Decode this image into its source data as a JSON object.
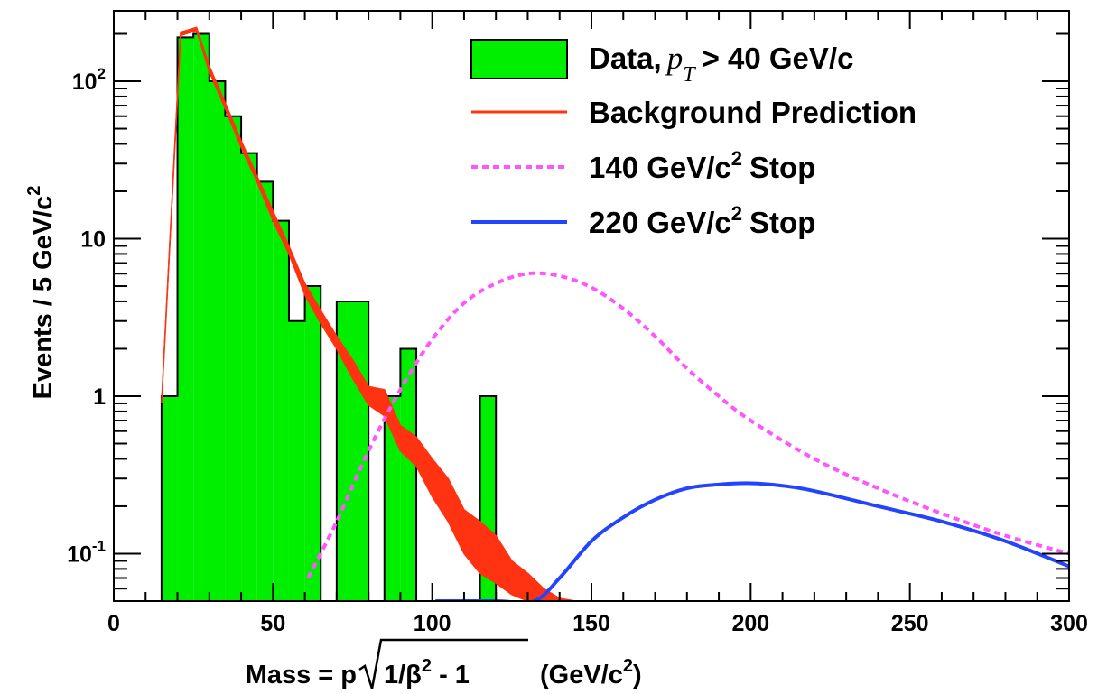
{
  "chart_data": {
    "type": "bar",
    "xlabel_prefix": "Mass = p",
    "xlabel_root": "1/β",
    "xlabel_root_sup": "2",
    "xlabel_root_tail": " - 1",
    "xlabel_units": "(GeV/c",
    "xlabel_units_sup": "2",
    "xlabel_units_close": ")",
    "ylabel": "Events / 5 GeV/c",
    "ylabel_sup": "2",
    "xlim": [
      0,
      300
    ],
    "ylim": [
      0.05,
      280
    ],
    "yscale": "log",
    "x_ticks": [
      "0",
      "50",
      "100",
      "150",
      "200",
      "250",
      "300"
    ],
    "y_ticks": [
      {
        "value": 0.1,
        "base": "10",
        "exp": "-1"
      },
      {
        "value": 1,
        "base": "1",
        "exp": ""
      },
      {
        "value": 10,
        "base": "10",
        "exp": ""
      },
      {
        "value": 100,
        "base": "10",
        "exp": "2"
      }
    ],
    "legend_placement": "top-right",
    "histogram": {
      "name": "Data, p_T > 40 GeV/c",
      "legend_prefix": "Data,",
      "legend_symbol": "p",
      "legend_symbol_sub": "T",
      "legend_suffix": "> 40 GeV/c",
      "color": "#00ee00",
      "bin_edges": [
        15,
        20,
        25,
        30,
        35,
        40,
        45,
        50,
        55,
        60,
        65,
        70,
        75,
        80,
        85,
        90,
        95,
        100,
        105,
        110,
        115,
        120
      ],
      "values": [
        1,
        190,
        200,
        100,
        60,
        35,
        23,
        13,
        3,
        5,
        0,
        4,
        4,
        0,
        1,
        2,
        0,
        0,
        0,
        0,
        1
      ]
    },
    "series": [
      {
        "name": "Background Prediction",
        "color": "#ff3311",
        "x": [
          15,
          21,
          26,
          30,
          35,
          40,
          45,
          50,
          55,
          60,
          65,
          70,
          75,
          80,
          85,
          90,
          95,
          100,
          105,
          110,
          115,
          120,
          125,
          130,
          135,
          140,
          145
        ],
        "y": [
          0.9,
          200,
          215,
          120,
          70,
          40,
          24,
          14,
          8.5,
          4.8,
          3.2,
          2.2,
          1.5,
          1.0,
          0.9,
          0.55,
          0.45,
          0.3,
          0.22,
          0.14,
          0.11,
          0.09,
          0.07,
          0.06,
          0.05,
          0.048,
          0.047
        ],
        "band_lower": [
          0.9,
          195,
          210,
          115,
          67,
          38,
          23,
          13,
          8.0,
          4.4,
          2.9,
          2.0,
          1.3,
          0.88,
          0.75,
          0.45,
          0.36,
          0.23,
          0.16,
          0.1,
          0.075,
          0.065,
          0.055,
          0.05,
          0.048,
          0.047,
          0.046
        ],
        "band_upper": [
          0.9,
          205,
          220,
          125,
          73,
          42,
          25,
          15,
          9.0,
          5.2,
          3.5,
          2.4,
          1.7,
          1.15,
          1.1,
          0.65,
          0.55,
          0.4,
          0.3,
          0.19,
          0.16,
          0.13,
          0.09,
          0.075,
          0.06,
          0.052,
          0.05
        ]
      },
      {
        "name": "140 GeV/c",
        "name_sup": "2",
        "name_suffix": "Stop",
        "color": "#ff55ff",
        "dashed": true,
        "x": [
          61,
          70,
          80,
          90,
          100,
          110,
          120,
          130,
          140,
          150,
          160,
          170,
          180,
          190,
          200,
          220,
          240,
          260,
          280,
          300
        ],
        "y": [
          0.07,
          0.16,
          0.45,
          1.1,
          2.3,
          3.9,
          5.2,
          6.0,
          5.8,
          4.9,
          3.6,
          2.4,
          1.5,
          1.0,
          0.7,
          0.4,
          0.26,
          0.18,
          0.13,
          0.1
        ]
      },
      {
        "name": "220 GeV/c",
        "name_sup": "2",
        "name_suffix": "Stop",
        "color": "#2244ff",
        "dashed": false,
        "x": [
          101,
          120,
          132,
          140,
          150,
          160,
          170,
          180,
          190,
          200,
          210,
          220,
          240,
          260,
          280,
          300
        ],
        "y": [
          0.05,
          0.05,
          0.05,
          0.07,
          0.12,
          0.17,
          0.22,
          0.26,
          0.275,
          0.28,
          0.27,
          0.25,
          0.2,
          0.16,
          0.12,
          0.083
        ]
      }
    ]
  }
}
